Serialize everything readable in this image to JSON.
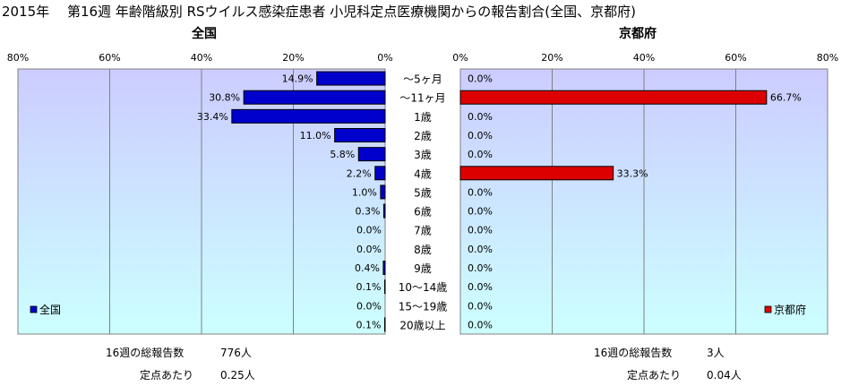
{
  "title": "2015年　 第16週 年齢階級別 RSウイルス感染症患者 小児科定点医療機関からの報告割合(全国、京都府)",
  "chart_data": {
    "type": "bar",
    "orientation": "horizontal",
    "categories": [
      "～5ヶ月",
      "～11ヶ月",
      "1歳",
      "2歳",
      "3歳",
      "4歳",
      "5歳",
      "6歳",
      "7歳",
      "8歳",
      "9歳",
      "10～14歳",
      "15～19歳",
      "20歳以上"
    ],
    "panels": [
      {
        "title": "全国",
        "legend": "全国",
        "legend_position": "bottom-left",
        "direction": "leftward",
        "color": "#0000cc",
        "xlim": [
          0,
          80
        ],
        "ticks": [
          "80%",
          "60%",
          "40%",
          "20%",
          "0%"
        ],
        "values": [
          14.9,
          30.8,
          33.4,
          11.0,
          5.8,
          2.2,
          1.0,
          0.3,
          0.0,
          0.0,
          0.4,
          0.1,
          0.0,
          0.1
        ],
        "labels": [
          "14.9%",
          "30.8%",
          "33.4%",
          "11.0%",
          "5.8%",
          "2.2%",
          "1.0%",
          "0.3%",
          "0.0%",
          "0.0%",
          "0.4%",
          "0.1%",
          "0.0%",
          "0.1%"
        ]
      },
      {
        "title": "京都府",
        "legend": "京都府",
        "legend_position": "bottom-right",
        "direction": "rightward",
        "color": "#dd0000",
        "xlim": [
          0,
          80
        ],
        "ticks": [
          "0%",
          "20%",
          "40%",
          "60%",
          "80%"
        ],
        "values": [
          0.0,
          66.7,
          0.0,
          0.0,
          0.0,
          33.3,
          0.0,
          0.0,
          0.0,
          0.0,
          0.0,
          0.0,
          0.0,
          0.0
        ],
        "labels": [
          "0.0%",
          "66.7%",
          "0.0%",
          "0.0%",
          "0.0%",
          "33.3%",
          "0.0%",
          "0.0%",
          "0.0%",
          "0.0%",
          "0.0%",
          "0.0%",
          "0.0%",
          "0.0%"
        ]
      }
    ]
  },
  "stats": {
    "national": {
      "total_label": "16週の総報告数",
      "total_value": "776人",
      "per_label": "定点あたり",
      "per_value": "0.25人"
    },
    "kyoto": {
      "total_label": "16週の総報告数",
      "total_value": "3人",
      "per_label": "定点あたり",
      "per_value": "0.04人"
    }
  },
  "colors": {
    "plot_bg_top": "#ccccff",
    "plot_bg_bottom": "#ccffff",
    "gridline": "#808080",
    "national_bar": "#0000cc",
    "kyoto_bar": "#dd0000"
  }
}
